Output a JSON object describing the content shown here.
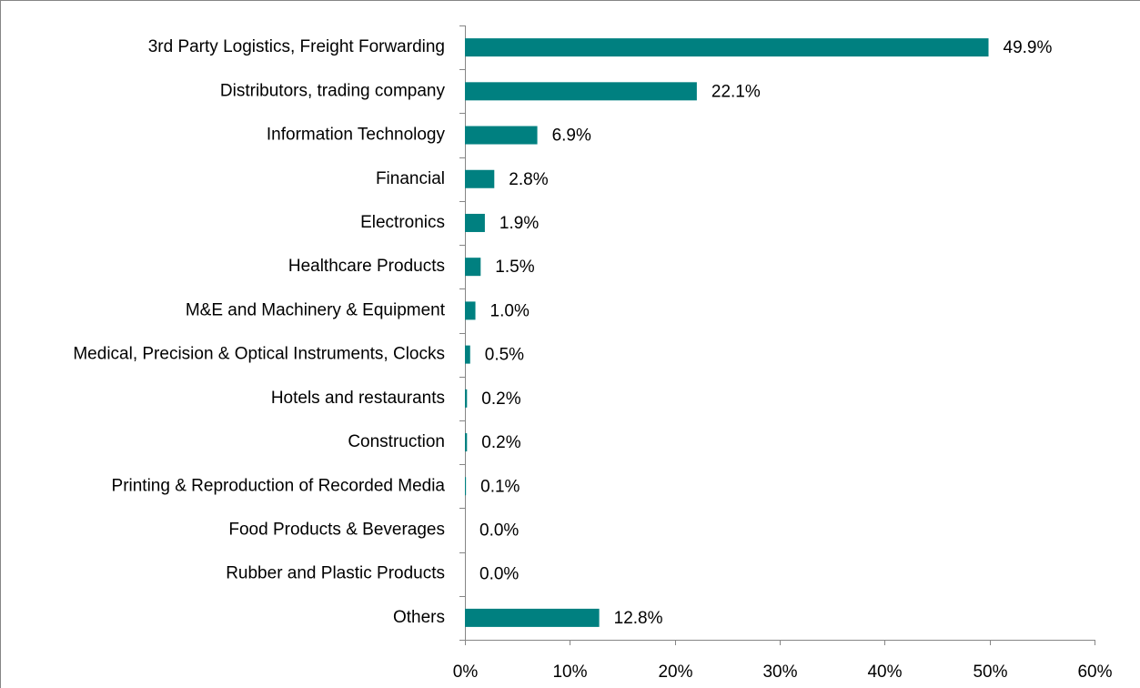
{
  "chart_data": {
    "type": "bar",
    "orientation": "horizontal",
    "categories": [
      "3rd Party Logistics, Freight Forwarding",
      "Distributors, trading company",
      "Information Technology",
      "Financial",
      "Electronics",
      "Healthcare Products",
      "M&E and Machinery & Equipment",
      "Medical, Precision & Optical Instruments, Clocks",
      "Hotels and restaurants",
      "Construction",
      "Printing & Reproduction of Recorded Media",
      "Food Products & Beverages",
      "Rubber and Plastic Products",
      "Others"
    ],
    "values": [
      49.9,
      22.1,
      6.9,
      2.8,
      1.9,
      1.5,
      1.0,
      0.5,
      0.2,
      0.2,
      0.1,
      0.0,
      0.0,
      12.8
    ],
    "value_labels": [
      "49.9%",
      "22.1%",
      "6.9%",
      "2.8%",
      "1.9%",
      "1.5%",
      "1.0%",
      "0.5%",
      "0.2%",
      "0.2%",
      "0.1%",
      "0.0%",
      "0.0%",
      "12.8%"
    ],
    "color": "#008080",
    "xlim": [
      0,
      60
    ],
    "xticks": [
      {
        "value": 0,
        "label": "0%"
      },
      {
        "value": 10,
        "label": "10%"
      },
      {
        "value": 20,
        "label": "20%"
      },
      {
        "value": 30,
        "label": "30%"
      },
      {
        "value": 40,
        "label": "40%"
      },
      {
        "value": 50,
        "label": "50%"
      },
      {
        "value": 60,
        "label": "60%"
      }
    ],
    "grid": false
  }
}
